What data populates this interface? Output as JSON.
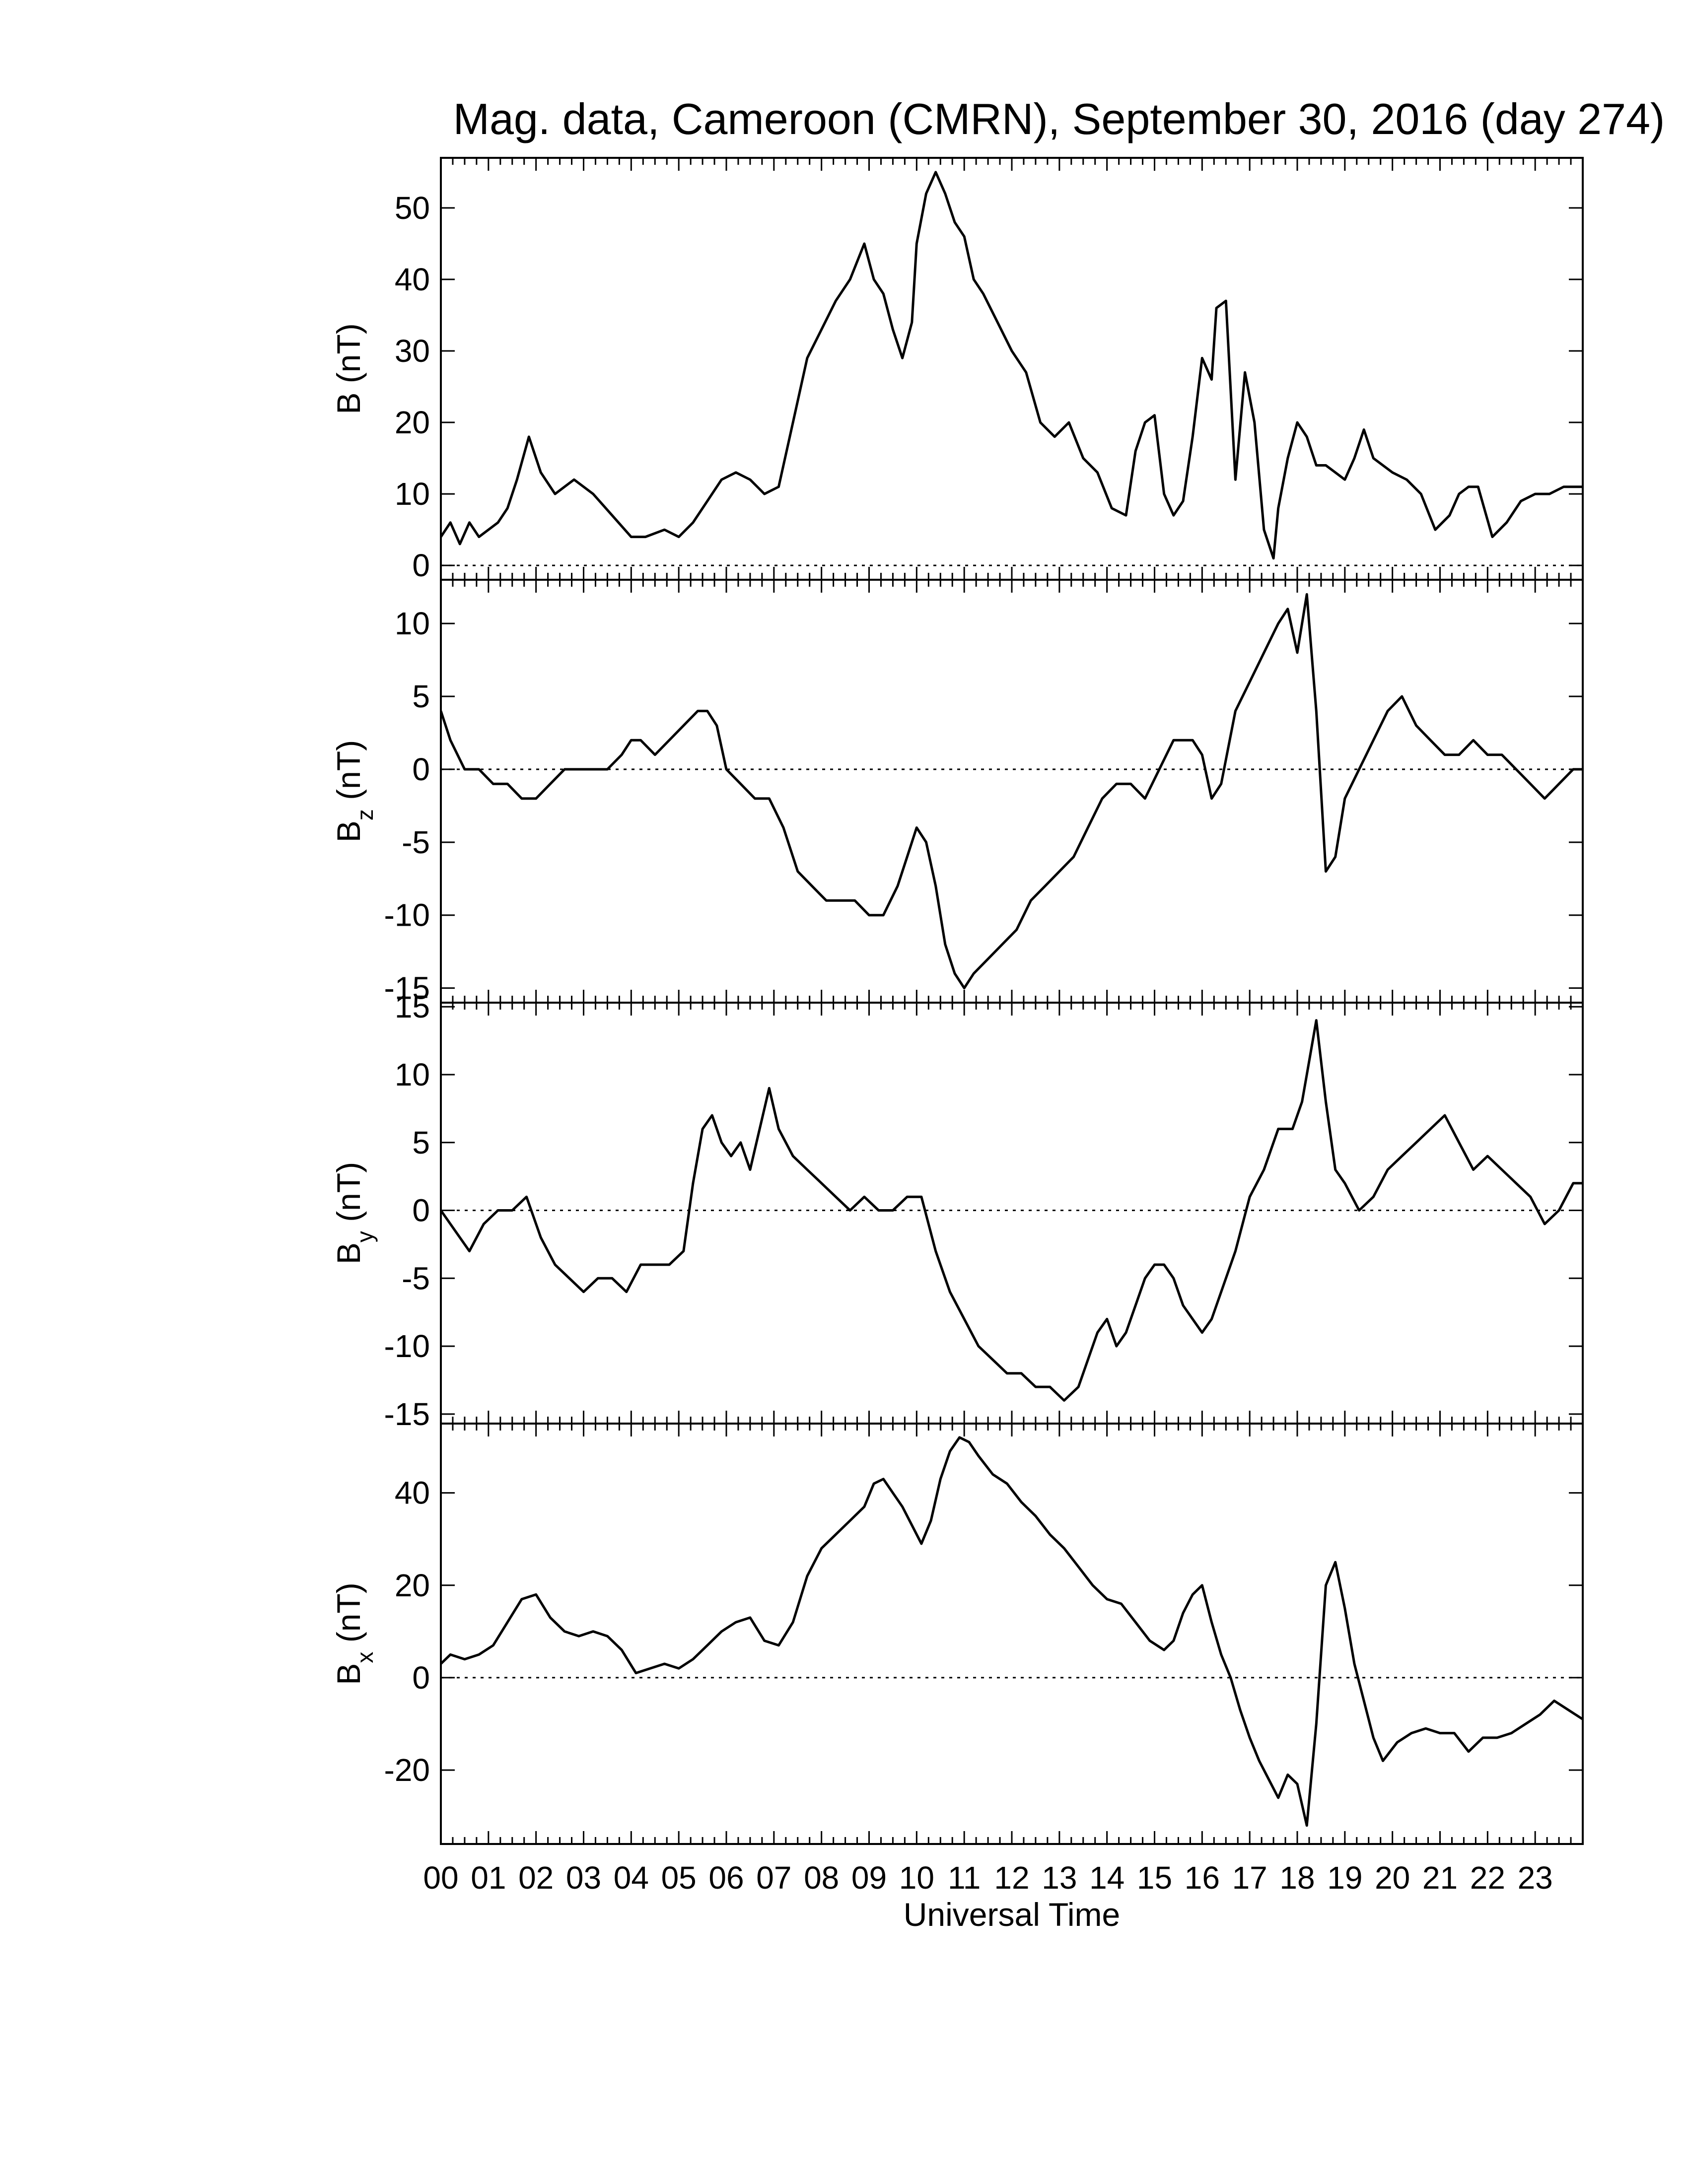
{
  "chart_data": {
    "type": "line",
    "title": "Mag. data, Cameroon (CMRN), September 30, 2016 (day 274)",
    "xlabel": "Universal Time",
    "x_tick_labels": [
      "00",
      "01",
      "02",
      "03",
      "04",
      "05",
      "06",
      "07",
      "08",
      "09",
      "10",
      "11",
      "12",
      "13",
      "14",
      "15",
      "16",
      "17",
      "18",
      "19",
      "20",
      "21",
      "22",
      "23"
    ],
    "xlim": [
      0,
      24
    ],
    "zero_line": "dotted",
    "panels": [
      {
        "id": "B",
        "ylabel": "B (nT)",
        "ylabel_main": "B",
        "ylabel_sub": "",
        "ylabel_unit": "(nT)",
        "ylim": [
          -2,
          57
        ],
        "yticks": [
          0,
          10,
          20,
          30,
          40,
          50
        ],
        "x": [
          0,
          0.2,
          0.4,
          0.6,
          0.8,
          1.0,
          1.2,
          1.4,
          1.6,
          1.85,
          2.1,
          2.4,
          2.8,
          3.2,
          3.6,
          4.0,
          4.3,
          4.7,
          5.0,
          5.3,
          5.6,
          5.9,
          6.2,
          6.5,
          6.8,
          7.1,
          7.4,
          7.7,
          8.0,
          8.3,
          8.6,
          8.9,
          9.1,
          9.3,
          9.5,
          9.7,
          9.9,
          10.0,
          10.2,
          10.4,
          10.6,
          10.8,
          11.0,
          11.2,
          11.4,
          11.7,
          12.0,
          12.3,
          12.6,
          12.9,
          13.2,
          13.5,
          13.8,
          14.1,
          14.4,
          14.6,
          14.8,
          15.0,
          15.2,
          15.4,
          15.6,
          15.8,
          16.0,
          16.2,
          16.3,
          16.5,
          16.7,
          16.9,
          17.1,
          17.3,
          17.5,
          17.6,
          17.8,
          18.0,
          18.2,
          18.4,
          18.6,
          18.8,
          19.0,
          19.2,
          19.4,
          19.6,
          19.8,
          20.0,
          20.3,
          20.6,
          20.9,
          21.2,
          21.4,
          21.6,
          21.8,
          22.1,
          22.4,
          22.7,
          23.0,
          23.3,
          23.6,
          23.9,
          24.0
        ],
        "y": [
          4,
          6,
          3,
          6,
          4,
          5,
          6,
          8,
          12,
          18,
          13,
          10,
          12,
          10,
          7,
          4,
          4,
          5,
          4,
          6,
          9,
          12,
          13,
          12,
          10,
          11,
          20,
          29,
          33,
          37,
          40,
          45,
          40,
          38,
          33,
          29,
          34,
          45,
          52,
          55,
          52,
          48,
          46,
          40,
          38,
          34,
          30,
          27,
          20,
          18,
          20,
          15,
          13,
          8,
          7,
          16,
          20,
          21,
          10,
          7,
          9,
          18,
          29,
          26,
          36,
          37,
          12,
          27,
          20,
          5,
          1,
          8,
          15,
          20,
          18,
          14,
          14,
          13,
          12,
          15,
          19,
          15,
          14,
          13,
          12,
          10,
          5,
          7,
          10,
          11,
          11,
          4,
          6,
          9,
          10,
          10,
          11,
          11,
          11
        ],
        "y_override_note": ""
      },
      {
        "id": "Bz",
        "ylabel": "Bz (nT)",
        "ylabel_main": "B",
        "ylabel_sub": "z",
        "ylabel_unit": "(nT)",
        "ylim": [
          -16,
          13
        ],
        "yticks": [
          -15,
          -10,
          -5,
          0,
          5,
          10
        ],
        "x": [
          0,
          0.2,
          0.5,
          0.8,
          1.1,
          1.4,
          1.7,
          2.0,
          2.3,
          2.6,
          2.9,
          3.2,
          3.5,
          3.8,
          4.0,
          4.2,
          4.5,
          4.8,
          5.1,
          5.4,
          5.6,
          5.8,
          6.0,
          6.3,
          6.6,
          6.9,
          7.2,
          7.5,
          7.8,
          8.1,
          8.4,
          8.7,
          9.0,
          9.3,
          9.6,
          9.8,
          10.0,
          10.2,
          10.4,
          10.6,
          10.8,
          11.0,
          11.2,
          11.5,
          11.8,
          12.1,
          12.4,
          12.7,
          13.0,
          13.3,
          13.6,
          13.9,
          14.2,
          14.5,
          14.8,
          15.1,
          15.4,
          15.6,
          15.8,
          16.0,
          16.2,
          16.4,
          16.7,
          17.0,
          17.3,
          17.6,
          17.8,
          18.0,
          18.2,
          18.4,
          18.6,
          18.8,
          19.0,
          19.3,
          19.6,
          19.9,
          20.2,
          20.5,
          20.8,
          21.1,
          21.4,
          21.7,
          22.0,
          22.3,
          22.6,
          22.9,
          23.2,
          23.5,
          23.8,
          24.0
        ],
        "y": [
          4,
          2,
          0,
          0,
          -1,
          -1,
          -2,
          -2,
          -1,
          0,
          0,
          0,
          0,
          1,
          2,
          2,
          1,
          2,
          3,
          4,
          4,
          3,
          0,
          -1,
          -2,
          -2,
          -4,
          -7,
          -8,
          -9,
          -9,
          -9,
          -10,
          -10,
          -8,
          -6,
          -4,
          -5,
          -8,
          -12,
          -14,
          -15,
          -14,
          -13,
          -12,
          -11,
          -9,
          -8,
          -7,
          -6,
          -4,
          -2,
          -1,
          -1,
          -2,
          0,
          2,
          2,
          2,
          1,
          -2,
          -1,
          4,
          6,
          8,
          10,
          11,
          8,
          12,
          4,
          -7,
          -6,
          -2,
          0,
          2,
          4,
          5,
          3,
          2,
          1,
          1,
          2,
          1,
          1,
          0,
          -1,
          -2,
          -1,
          0,
          0
        ]
      },
      {
        "id": "By",
        "ylabel": "By (nT)",
        "ylabel_main": "B",
        "ylabel_sub": "y",
        "ylabel_unit": "(nT)",
        "ylim": [
          -15.7,
          15.3
        ],
        "yticks": [
          -15,
          -10,
          -5,
          0,
          5,
          10,
          15
        ],
        "x": [
          0,
          0.2,
          0.4,
          0.6,
          0.9,
          1.2,
          1.5,
          1.8,
          2.1,
          2.4,
          2.7,
          3.0,
          3.3,
          3.6,
          3.9,
          4.2,
          4.5,
          4.8,
          5.1,
          5.3,
          5.5,
          5.7,
          5.9,
          6.1,
          6.3,
          6.5,
          6.7,
          6.9,
          7.1,
          7.4,
          7.7,
          8.0,
          8.3,
          8.6,
          8.9,
          9.2,
          9.5,
          9.8,
          10.1,
          10.4,
          10.7,
          11.0,
          11.3,
          11.6,
          11.9,
          12.2,
          12.5,
          12.8,
          13.1,
          13.4,
          13.6,
          13.8,
          14.0,
          14.2,
          14.4,
          14.6,
          14.8,
          15.0,
          15.2,
          15.4,
          15.6,
          15.8,
          16.0,
          16.2,
          16.4,
          16.7,
          17.0,
          17.3,
          17.6,
          17.9,
          18.1,
          18.2,
          18.4,
          18.6,
          18.8,
          19.0,
          19.3,
          19.6,
          19.9,
          20.2,
          20.5,
          20.8,
          21.1,
          21.4,
          21.7,
          22.0,
          22.3,
          22.6,
          22.9,
          23.2,
          23.5,
          23.8,
          24.0
        ],
        "y": [
          0,
          -1,
          -2,
          -3,
          -1,
          0,
          0,
          1,
          -2,
          -4,
          -5,
          -6,
          -5,
          -5,
          -6,
          -4,
          -4,
          -4,
          -3,
          2,
          6,
          7,
          5,
          4,
          5,
          3,
          6,
          9,
          6,
          4,
          3,
          2,
          1,
          0,
          1,
          0,
          0,
          1,
          1,
          -3,
          -6,
          -8,
          -10,
          -11,
          -12,
          -12,
          -13,
          -13,
          -14,
          -13,
          -11,
          -9,
          -8,
          -10,
          -9,
          -7,
          -5,
          -4,
          -4,
          -5,
          -7,
          -8,
          -9,
          -8,
          -6,
          -3,
          1,
          3,
          6,
          6,
          8,
          10,
          14,
          8,
          3,
          2,
          0,
          1,
          3,
          4,
          5,
          6,
          7,
          5,
          3,
          4,
          3,
          2,
          1,
          -1,
          0,
          2,
          2
        ]
      },
      {
        "id": "Bx",
        "ylabel": "Bx (nT)",
        "ylabel_main": "B",
        "ylabel_sub": "x",
        "ylabel_unit": "(nT)",
        "ylim": [
          -36,
          55
        ],
        "yticks": [
          -20,
          0,
          20,
          40
        ],
        "x": [
          0,
          0.2,
          0.5,
          0.8,
          1.1,
          1.4,
          1.7,
          2.0,
          2.3,
          2.6,
          2.9,
          3.2,
          3.5,
          3.8,
          4.1,
          4.4,
          4.7,
          5.0,
          5.3,
          5.6,
          5.9,
          6.2,
          6.5,
          6.8,
          7.1,
          7.4,
          7.7,
          8.0,
          8.3,
          8.6,
          8.9,
          9.1,
          9.3,
          9.5,
          9.7,
          9.9,
          10.1,
          10.3,
          10.5,
          10.7,
          10.9,
          11.1,
          11.3,
          11.6,
          11.9,
          12.2,
          12.5,
          12.8,
          13.1,
          13.4,
          13.7,
          14.0,
          14.3,
          14.6,
          14.9,
          15.2,
          15.4,
          15.6,
          15.8,
          16.0,
          16.2,
          16.4,
          16.6,
          16.8,
          17.0,
          17.2,
          17.4,
          17.6,
          17.8,
          18.0,
          18.2,
          18.4,
          18.6,
          18.8,
          19.0,
          19.2,
          19.4,
          19.6,
          19.8,
          20.1,
          20.4,
          20.7,
          21.0,
          21.3,
          21.6,
          21.9,
          22.2,
          22.5,
          22.8,
          23.1,
          23.4,
          23.7,
          24.0
        ],
        "y": [
          3,
          5,
          4,
          5,
          7,
          12,
          17,
          18,
          13,
          10,
          9,
          10,
          9,
          6,
          1,
          2,
          3,
          2,
          4,
          7,
          10,
          12,
          13,
          8,
          7,
          12,
          22,
          28,
          31,
          34,
          37,
          42,
          43,
          40,
          37,
          33,
          29,
          34,
          43,
          49,
          52,
          51,
          48,
          44,
          42,
          38,
          35,
          31,
          28,
          24,
          20,
          17,
          16,
          12,
          8,
          6,
          8,
          14,
          18,
          20,
          12,
          5,
          0,
          -7,
          -13,
          -18,
          -22,
          -26,
          -21,
          -23,
          -32,
          -10,
          20,
          25,
          15,
          3,
          -5,
          -13,
          -18,
          -14,
          -12,
          -11,
          -12,
          -12,
          -16,
          -13,
          -13,
          -12,
          -10,
          -8,
          -5,
          -7,
          -9
        ]
      }
    ]
  }
}
